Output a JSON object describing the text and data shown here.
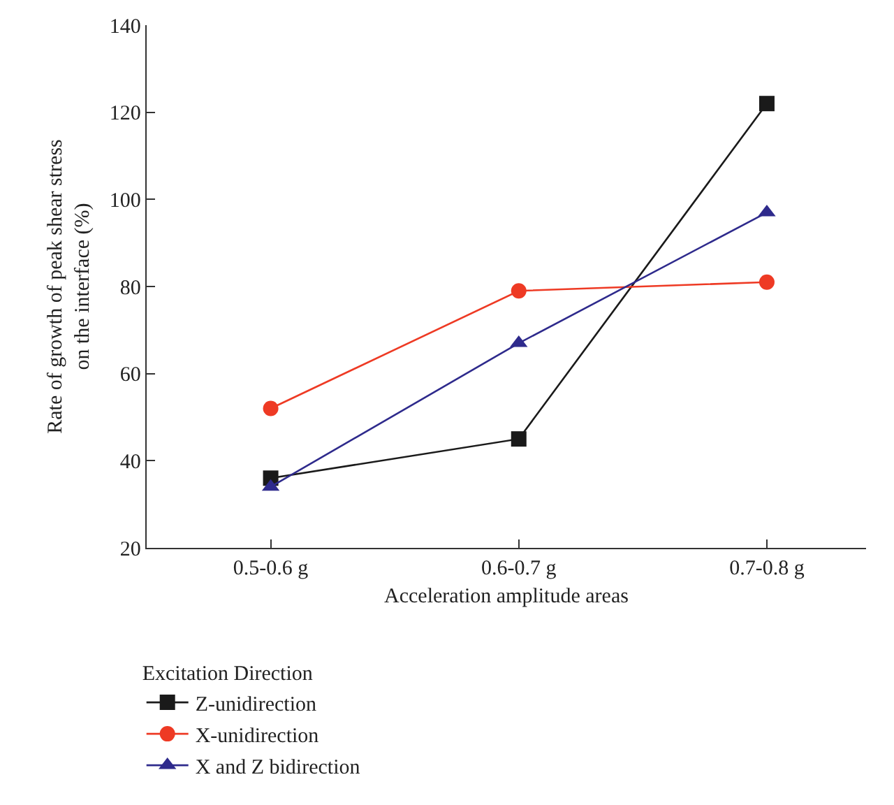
{
  "chart_data": {
    "type": "line",
    "xlabel": "Acceleration amplitude areas",
    "ylabel": "Rate of growth of peak shear stress\non the interface (%)",
    "legend_title": "Excitation Direction",
    "categories": [
      "0.5-0.6 g",
      "0.6-0.7 g",
      "0.7-0.8 g"
    ],
    "series": [
      {
        "name": "Z-unidirection",
        "color": "#1a1a1a",
        "marker": "square",
        "values": [
          36,
          45,
          122
        ]
      },
      {
        "name": "X-unidirection",
        "color": "#ee3a24",
        "marker": "circle",
        "values": [
          52,
          79,
          81
        ]
      },
      {
        "name": "X and Z bidirection",
        "color": "#2e2a8c",
        "marker": "triangle",
        "values": [
          34,
          67,
          97
        ]
      }
    ],
    "ylim": [
      20,
      140
    ],
    "yticks": [
      20,
      40,
      60,
      80,
      100,
      120,
      140
    ],
    "grid": false,
    "legend": "bottom",
    "line_style": "solid"
  }
}
